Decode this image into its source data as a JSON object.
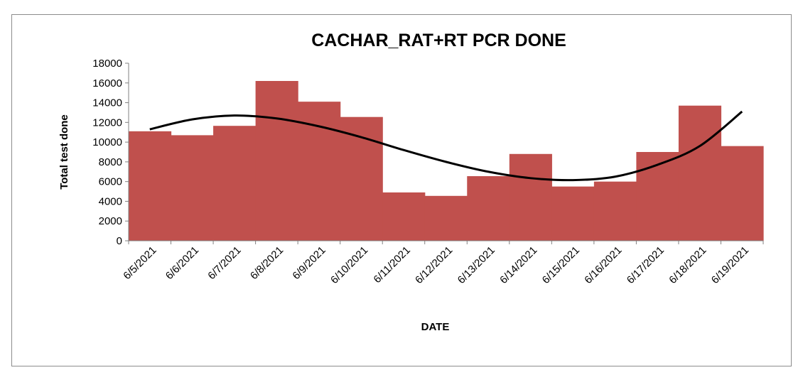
{
  "chart_data": {
    "type": "bar",
    "title": "CACHAR_RAT+RT PCR DONE",
    "xlabel": "DATE",
    "ylabel": "Total test done",
    "categories": [
      "6/5/2021",
      "6/6/2021",
      "6/7/2021",
      "6/8/2021",
      "6/9/2021",
      "6/10/2021",
      "6/11/2021",
      "6/12/2021",
      "6/13/2021",
      "6/14/2021",
      "6/15/2021",
      "6/16/2021",
      "6/17/2021",
      "6/18/2021",
      "6/19/2021"
    ],
    "values": [
      11100,
      10700,
      11650,
      16200,
      14100,
      12550,
      4900,
      4550,
      6550,
      8800,
      5500,
      6000,
      9000,
      13700,
      9600
    ],
    "ylim": [
      0,
      18000
    ],
    "yticks": [
      0,
      2000,
      4000,
      6000,
      8000,
      10000,
      12000,
      14000,
      16000,
      18000
    ],
    "bar_color": "#c0504d",
    "trendline": {
      "type": "polynomial",
      "color": "#000000",
      "values": [
        11300,
        12300,
        12700,
        12400,
        11600,
        10500,
        9200,
        8000,
        7000,
        6350,
        6150,
        6500,
        7700,
        9600,
        13100
      ]
    },
    "grid": false,
    "legend": "none"
  }
}
